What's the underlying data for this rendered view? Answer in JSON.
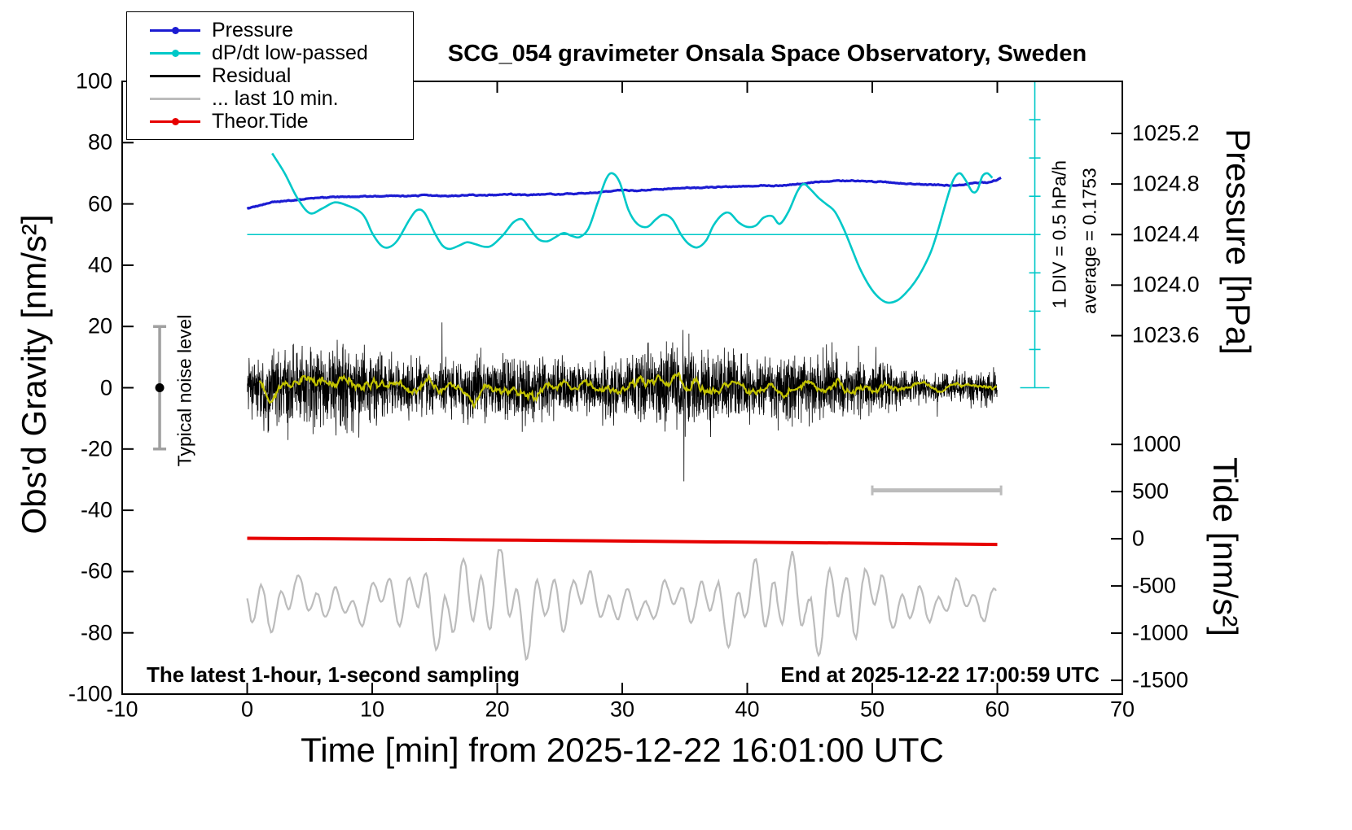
{
  "title": "SCG_054 gravimeter Onsala Space Observatory, Sweden",
  "annotations": {
    "sampling_note": "The latest 1-hour, 1-second sampling",
    "end_time_note": "End at 2025-12-22 17:00:59 UTC",
    "noise_level_label": "Typical noise level",
    "div_note": "1 DIV = 0.5 hPa/h",
    "average_note": "average = 0.1753"
  },
  "axes": {
    "x": {
      "label": "Time [min] from 2025-12-22 16:01:00 UTC",
      "min": -10,
      "max": 70,
      "tick_values": [
        -10,
        0,
        10,
        20,
        30,
        40,
        50,
        60,
        70
      ],
      "tick_labels": [
        "-10",
        "0",
        "10",
        "20",
        "30",
        "40",
        "50",
        "60",
        "70"
      ]
    },
    "y_left": {
      "label": "Obs'd Gravity [nm/s²]",
      "min": -100,
      "max": 100,
      "tick_values": [
        -100,
        -80,
        -60,
        -40,
        -20,
        0,
        20,
        40,
        60,
        80,
        100
      ],
      "tick_labels": [
        "-100",
        "-80",
        "-60",
        "-40",
        "-20",
        "0",
        "20",
        "40",
        "60",
        "80",
        "100"
      ]
    },
    "y_right_pressure": {
      "label": "Pressure [hPa]",
      "tick_values": [
        1025.2,
        1024.8,
        1024.4,
        1024.0,
        1023.6
      ],
      "tick_labels": [
        "1025.2",
        "1024.8",
        "1024.4",
        "1024.0",
        "1023.6"
      ]
    },
    "y_right_tide": {
      "label": "Tide [nm/s²]",
      "tick_values": [
        1000,
        500,
        0,
        -500,
        -1000,
        -1500
      ],
      "tick_labels": [
        "1000",
        "500",
        "0",
        "-500",
        "-1000",
        "-1500"
      ]
    }
  },
  "legend": {
    "items": [
      {
        "label": "Pressure",
        "color": "#1c1cd2",
        "marker": "line-dot"
      },
      {
        "label": "dP/dt low-passed",
        "color": "#00c8c8",
        "marker": "line-dot"
      },
      {
        "label": "Residual",
        "color": "#000000",
        "marker": "line"
      },
      {
        "label": "... last 10 min.",
        "color": "#bcbcbc",
        "marker": "line"
      },
      {
        "label": "Theor.Tide",
        "color": "#e60000",
        "marker": "line-dot"
      }
    ]
  },
  "chart_data": {
    "type": "line",
    "title": "SCG_054 gravimeter Onsala Space Observatory, Sweden",
    "xlabel": "Time [min] from 2025-12-22 16:01:00 UTC",
    "x_range": [
      -10,
      70
    ],
    "y_left_range": [
      -100,
      100
    ],
    "y_left_label": "Obs'd Gravity [nm/s²]",
    "pressure_axis": {
      "ticks_hPa": [
        1025.2,
        1024.8,
        1024.4,
        1024.0,
        1023.6
      ]
    },
    "tide_axis": {
      "ticks_nms2": [
        1000,
        500,
        0,
        -500,
        -1000,
        -1500
      ]
    },
    "grid": false,
    "legend_position": "top-left",
    "series": [
      {
        "name": "Pressure",
        "unit": "hPa",
        "color": "#1c1cd2",
        "x_start_min": 0,
        "x_step_min": 1,
        "values": [
          1024.606,
          1024.63,
          1024.655,
          1024.667,
          1024.674,
          1024.686,
          1024.691,
          1024.696,
          1024.698,
          1024.701,
          1024.703,
          1024.708,
          1024.703,
          1024.705,
          1024.71,
          1024.708,
          1024.705,
          1024.71,
          1024.713,
          1024.71,
          1024.715,
          1024.718,
          1024.713,
          1024.715,
          1024.72,
          1024.718,
          1024.723,
          1024.727,
          1024.735,
          1024.744,
          1024.751,
          1024.747,
          1024.754,
          1024.759,
          1024.764,
          1024.771,
          1024.768,
          1024.776,
          1024.778,
          1024.776,
          1024.783,
          1024.788,
          1024.785,
          1024.793,
          1024.8,
          1024.812,
          1024.819,
          1024.824,
          1024.827,
          1024.824,
          1024.819,
          1024.812,
          1024.807,
          1024.8,
          1024.795,
          1024.793,
          1024.788,
          1024.795,
          1024.807,
          1024.812,
          1024.844
        ]
      },
      {
        "name": "dP/dt low-passed",
        "unit": "left-axis units (zero line at 50, 1 DIV = 0.5 hPa/h)",
        "color": "#00c8c8",
        "points": [
          [
            2,
            76.5
          ],
          [
            3,
            70
          ],
          [
            4,
            62
          ],
          [
            5,
            57
          ],
          [
            6,
            58.5
          ],
          [
            7,
            60.5
          ],
          [
            8,
            59.5
          ],
          [
            9,
            57.5
          ],
          [
            9.5,
            55
          ],
          [
            10,
            50.5
          ],
          [
            10.7,
            46.5
          ],
          [
            11.3,
            45.8
          ],
          [
            12,
            48
          ],
          [
            13,
            55
          ],
          [
            13.6,
            58
          ],
          [
            14.2,
            57
          ],
          [
            15,
            50.5
          ],
          [
            15.6,
            46.5
          ],
          [
            16.2,
            45.3
          ],
          [
            17,
            46.5
          ],
          [
            17.6,
            47.5
          ],
          [
            18.3,
            46.8
          ],
          [
            19,
            46
          ],
          [
            19.6,
            46.5
          ],
          [
            20.5,
            50
          ],
          [
            21.3,
            54
          ],
          [
            22,
            55
          ],
          [
            22.6,
            52
          ],
          [
            23.3,
            48.5
          ],
          [
            24,
            47.8
          ],
          [
            24.6,
            49
          ],
          [
            25.3,
            50.5
          ],
          [
            26,
            49.5
          ],
          [
            26.6,
            49.2
          ],
          [
            27.3,
            52
          ],
          [
            28,
            60
          ],
          [
            28.7,
            68
          ],
          [
            29.2,
            70
          ],
          [
            29.8,
            67
          ],
          [
            30.5,
            58
          ],
          [
            31.2,
            53.5
          ],
          [
            32,
            52.5
          ],
          [
            32.7,
            55
          ],
          [
            33.3,
            56.5
          ],
          [
            34,
            55
          ],
          [
            34.7,
            50
          ],
          [
            35.3,
            47
          ],
          [
            36,
            45.8
          ],
          [
            36.7,
            48
          ],
          [
            37.3,
            53
          ],
          [
            38,
            56.5
          ],
          [
            38.6,
            57
          ],
          [
            39.3,
            54
          ],
          [
            40,
            52.5
          ],
          [
            40.7,
            53
          ],
          [
            41.3,
            55.5
          ],
          [
            42,
            56
          ],
          [
            42.6,
            53.5
          ],
          [
            43.3,
            57.5
          ],
          [
            44,
            64
          ],
          [
            44.5,
            66.5
          ],
          [
            45,
            65
          ],
          [
            45.7,
            62
          ],
          [
            46.3,
            60
          ],
          [
            47,
            57.5
          ],
          [
            47.7,
            52
          ],
          [
            48.4,
            45
          ],
          [
            49,
            39
          ],
          [
            49.8,
            33
          ],
          [
            50.5,
            29.5
          ],
          [
            51.2,
            27.8
          ],
          [
            52,
            28.5
          ],
          [
            52.7,
            31
          ],
          [
            53.4,
            34.5
          ],
          [
            54,
            38.5
          ],
          [
            54.7,
            44.5
          ],
          [
            55.3,
            52
          ],
          [
            56,
            62
          ],
          [
            56.5,
            68
          ],
          [
            57,
            70
          ],
          [
            57.5,
            67.5
          ],
          [
            58,
            64
          ],
          [
            58.4,
            64.5
          ],
          [
            58.8,
            69
          ],
          [
            59.2,
            70
          ],
          [
            59.6,
            68.5
          ]
        ]
      },
      {
        "name": "Residual",
        "unit": "nm/s²",
        "color": "#000000",
        "description": "1-second sampling noise band about 0",
        "n_samples": 3600,
        "x_start_min": 0,
        "x_end_min": 60,
        "mean": 0,
        "typical_amplitude": 12,
        "min": -33,
        "max": 35
      },
      {
        "name": "Residual low-passed (yellow overlay)",
        "color": "#c3c300",
        "description": "smoothed residual riding on the noise band",
        "mean": 0,
        "typical_amplitude": 2.5
      },
      {
        "name": "... last 10 min.",
        "color": "#bcbcbc",
        "description": "last 10 minutes of residual, time-magnified over the full axis, offset to -70 on left axis",
        "center_axis_value": -70,
        "typical_amplitude": 14,
        "min": -89,
        "max": -53,
        "source_interval_min": [
          50,
          60
        ]
      },
      {
        "name": "Theor.Tide",
        "unit": "nm/s² (right tide axis)",
        "color": "#e60000",
        "x_start_min": 0,
        "x_step_min": 5,
        "values": [
          5,
          1,
          -3,
          -8,
          -13,
          -18,
          -24,
          -30,
          -36,
          -42,
          -48,
          -54,
          -60
        ]
      }
    ],
    "reference_marks": {
      "dpdt_zero_line_axis_value": 50,
      "dpdt_axis_x_min": 63,
      "dpdt_average_hPa_per_h": 0.1753,
      "dpdt_div_hPa_per_h": 0.5,
      "last10_source_bar": {
        "x_from": 50,
        "x_to": 60.3,
        "y_axis_value": -33.5
      },
      "noise_level_marker": {
        "x_min": -7,
        "y_from": -20,
        "y_to": 20,
        "dot_at": 0
      }
    }
  }
}
